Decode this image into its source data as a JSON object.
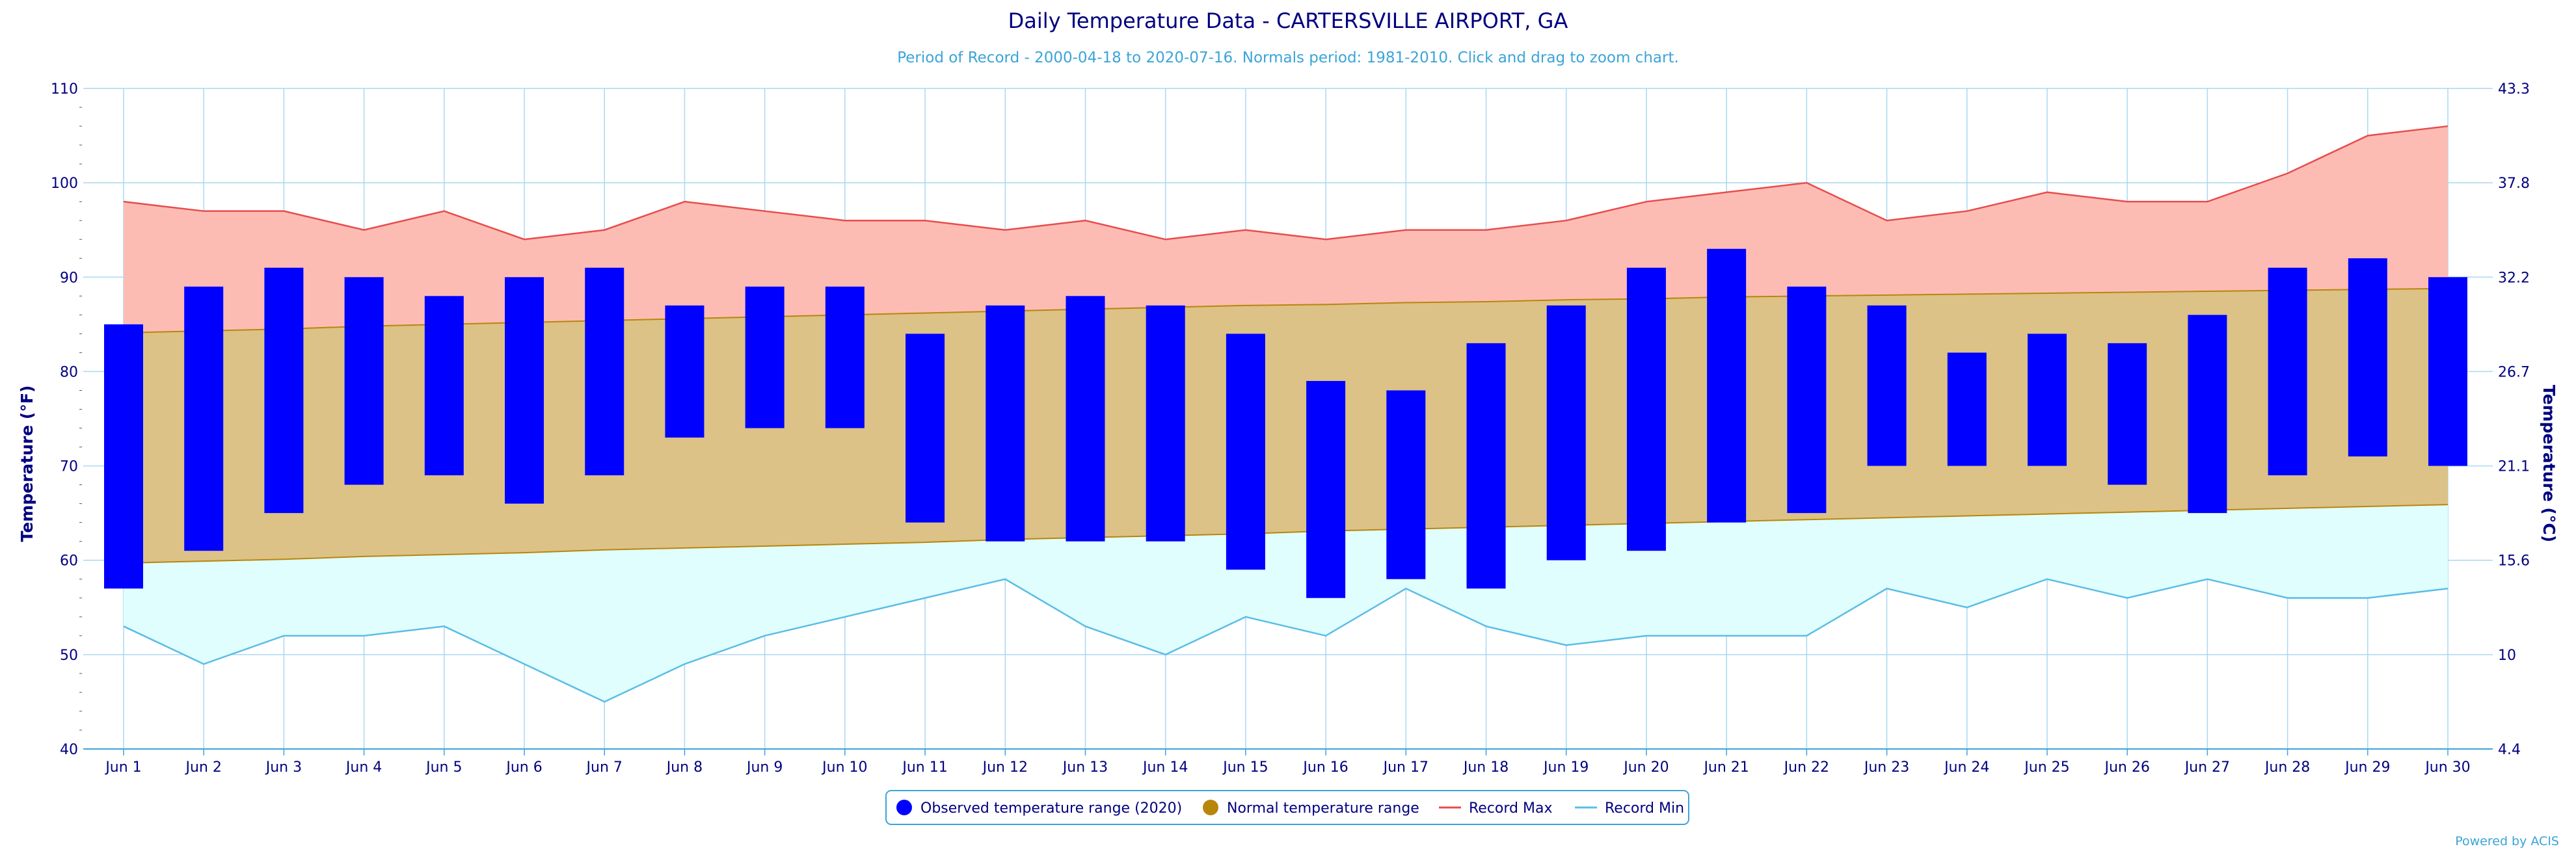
{
  "chart_data": {
    "type": "bar",
    "title": "Daily Temperature Data - CARTERSVILLE AIRPORT, GA",
    "subtitle": "Period of Record - 2000-04-18 to 2020-07-16. Normals period: 1981-2010. Click and drag to zoom chart.",
    "ylabel_left": "Temperature (°F)",
    "ylabel_right": "Temperature (°C)",
    "ylim": [
      40,
      110
    ],
    "yticks_left": [
      40,
      50,
      60,
      70,
      80,
      90,
      100,
      110
    ],
    "yticks_right": [
      "4.4",
      "10",
      "15.6",
      "21.1",
      "26.7",
      "32.2",
      "37.8",
      "43.3"
    ],
    "grid": true,
    "categories": [
      "Jun 1",
      "Jun 2",
      "Jun 3",
      "Jun 4",
      "Jun 5",
      "Jun 6",
      "Jun 7",
      "Jun 8",
      "Jun 9",
      "Jun 10",
      "Jun 11",
      "Jun 12",
      "Jun 13",
      "Jun 14",
      "Jun 15",
      "Jun 16",
      "Jun 17",
      "Jun 18",
      "Jun 19",
      "Jun 20",
      "Jun 21",
      "Jun 22",
      "Jun 23",
      "Jun 24",
      "Jun 25",
      "Jun 26",
      "Jun 27",
      "Jun 28",
      "Jun 29",
      "Jun 30"
    ],
    "series": [
      {
        "name": "Observed temperature range (2020)",
        "color": "#0000ff",
        "low": [
          57,
          61,
          65,
          68,
          69,
          66,
          69,
          73,
          74,
          74,
          64,
          62,
          62,
          62,
          59,
          56,
          58,
          57,
          60,
          61,
          64,
          65,
          70,
          70,
          70,
          68,
          65,
          69,
          71,
          70
        ],
        "high": [
          85,
          89,
          91,
          90,
          88,
          90,
          91,
          87,
          89,
          89,
          84,
          87,
          88,
          87,
          84,
          79,
          78,
          83,
          87,
          91,
          93,
          89,
          87,
          82,
          84,
          83,
          86,
          91,
          92,
          90
        ]
      },
      {
        "name": "Normal temperature range",
        "color": "#b8860b",
        "low": [
          59.7,
          59.9,
          60.1,
          60.4,
          60.6,
          60.8,
          61.1,
          61.3,
          61.5,
          61.7,
          61.9,
          62.2,
          62.4,
          62.6,
          62.8,
          63.1,
          63.3,
          63.5,
          63.7,
          63.9,
          64.1,
          64.3,
          64.5,
          64.7,
          64.9,
          65.1,
          65.3,
          65.5,
          65.7,
          65.9
        ],
        "high": [
          84.1,
          84.3,
          84.5,
          84.8,
          85.0,
          85.2,
          85.4,
          85.6,
          85.8,
          86.0,
          86.2,
          86.4,
          86.6,
          86.8,
          87.0,
          87.1,
          87.3,
          87.4,
          87.6,
          87.7,
          87.9,
          88.0,
          88.1,
          88.2,
          88.3,
          88.4,
          88.5,
          88.6,
          88.7,
          88.8
        ]
      },
      {
        "name": "Record Max",
        "color": "#e84c4c",
        "values": [
          98,
          97,
          97,
          95,
          97,
          94,
          95,
          98,
          97,
          96,
          96,
          95,
          96,
          94,
          95,
          94,
          95,
          95,
          96,
          98,
          99,
          100,
          96,
          97,
          99,
          98,
          98,
          101,
          105,
          106
        ]
      },
      {
        "name": "Record Min",
        "color": "#5bbde6",
        "values": [
          53,
          49,
          52,
          52,
          53,
          49,
          45,
          49,
          52,
          54,
          56,
          58,
          53,
          50,
          54,
          52,
          57,
          53,
          51,
          52,
          52,
          52,
          57,
          55,
          58,
          56,
          58,
          56,
          56,
          57
        ]
      }
    ],
    "legend_position": "bottom-center",
    "credit": "Powered by ACIS"
  }
}
